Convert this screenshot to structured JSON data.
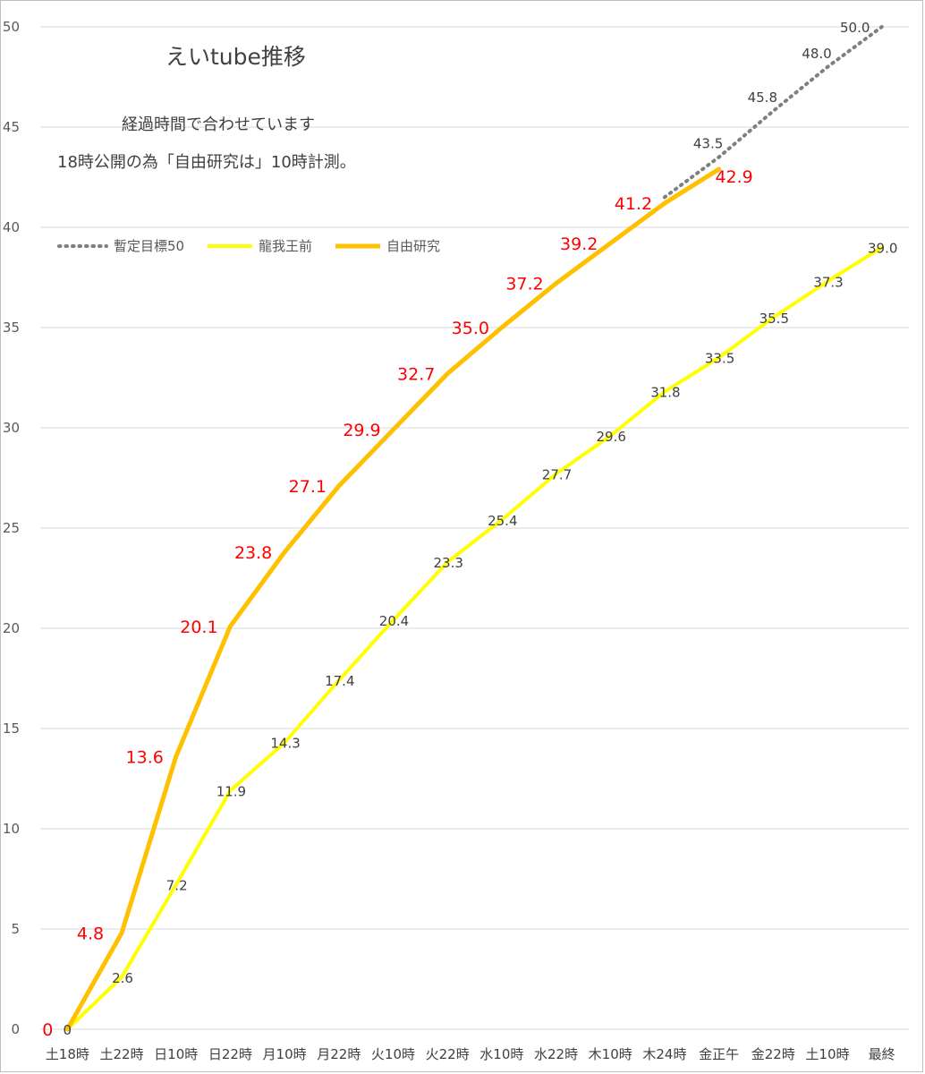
{
  "chart_data": {
    "type": "line",
    "title": "えいtube推移",
    "subtitle_lines": [
      "経過時間で合わせています",
      "18時公開の為「自由研究は」10時計測。"
    ],
    "categories": [
      "土18時",
      "土22時",
      "日10時",
      "日22時",
      "月10時",
      "月22時",
      "火10時",
      "火22時",
      "水10時",
      "水22時",
      "木10時",
      "木24時",
      "金正午",
      "金22時",
      "土10時",
      "最終"
    ],
    "ylim": [
      0,
      50
    ],
    "yticks": [
      0,
      5,
      10,
      15,
      20,
      25,
      30,
      35,
      40,
      45,
      50
    ],
    "grid": true,
    "legend_position": "top-left",
    "series": [
      {
        "name": "暫定目標50",
        "color": "#7f7f7f",
        "style": "dotted",
        "values": [
          null,
          null,
          null,
          null,
          null,
          null,
          null,
          null,
          null,
          null,
          null,
          41.5,
          43.5,
          45.8,
          48.0,
          50.0
        ],
        "labels": [
          null,
          null,
          null,
          null,
          null,
          null,
          null,
          null,
          null,
          null,
          null,
          null,
          "43.5",
          "45.8",
          "48.0",
          "50.0"
        ]
      },
      {
        "name": "龍我王前",
        "color": "#ffff00",
        "style": "solid",
        "values": [
          0,
          2.6,
          7.2,
          11.9,
          14.3,
          17.4,
          20.4,
          23.3,
          25.4,
          27.7,
          29.6,
          31.8,
          33.5,
          35.5,
          37.3,
          39.0
        ],
        "labels": [
          "0",
          "2.6",
          "7.2",
          "11.9",
          "14.3",
          "17.4",
          "20.4",
          "23.3",
          "25.4",
          "27.7",
          "29.6",
          "31.8",
          "33.5",
          "35.5",
          "37.3",
          "39.0"
        ]
      },
      {
        "name": "自由研究",
        "color": "#ffc000",
        "style": "solid",
        "values": [
          0,
          4.8,
          13.6,
          20.1,
          23.8,
          27.1,
          29.9,
          32.7,
          35.0,
          37.2,
          39.2,
          41.2,
          42.9,
          null,
          null,
          null
        ],
        "labels": [
          "0",
          "4.8",
          "13.6",
          "20.1",
          "23.8",
          "27.1",
          "29.9",
          "32.7",
          "35.0",
          "37.2",
          "39.2",
          "41.2",
          "42.9",
          null,
          null,
          null
        ]
      }
    ]
  }
}
